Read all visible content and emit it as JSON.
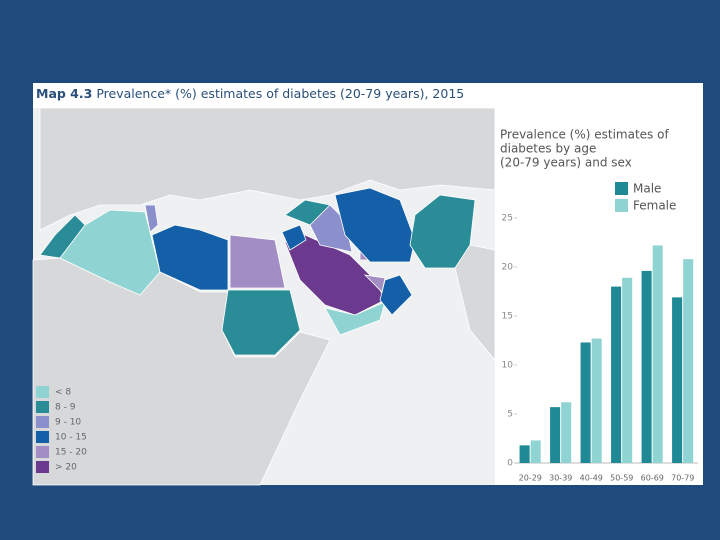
{
  "map_label": "Map 4.3",
  "title": "Prevalence* (%) estimates of diabetes (20-79 years), 2015",
  "legend": [
    {
      "label": "< 8",
      "color": "#8fd4d2"
    },
    {
      "label": "8 - 9",
      "color": "#2a8c97"
    },
    {
      "label": "9 - 10",
      "color": "#8b8fcc"
    },
    {
      "label": "10 - 15",
      "color": "#1460a8"
    },
    {
      "label": "15 - 20",
      "color": "#a28ec4"
    },
    {
      "label": "> 20",
      "color": "#6b3a8e"
    }
  ],
  "chart_data": {
    "type": "bar",
    "title": [
      "Prevalence (%) estimates of",
      "diabetes by age",
      "(20-79 years) and sex"
    ],
    "categories": [
      "20-29",
      "30-39",
      "40-49",
      "50-59",
      "60-69",
      "70-79"
    ],
    "series": [
      {
        "name": "Male",
        "color": "#1f8a96",
        "values": [
          1.8,
          5.7,
          12.3,
          18.0,
          19.6,
          16.9
        ]
      },
      {
        "name": "Female",
        "color": "#8fd4d2",
        "values": [
          2.3,
          6.2,
          12.7,
          18.9,
          22.2,
          20.8
        ]
      }
    ],
    "ylim": [
      0,
      25
    ],
    "yticks": [
      0,
      5,
      10,
      15,
      20,
      25
    ],
    "grid": false
  }
}
